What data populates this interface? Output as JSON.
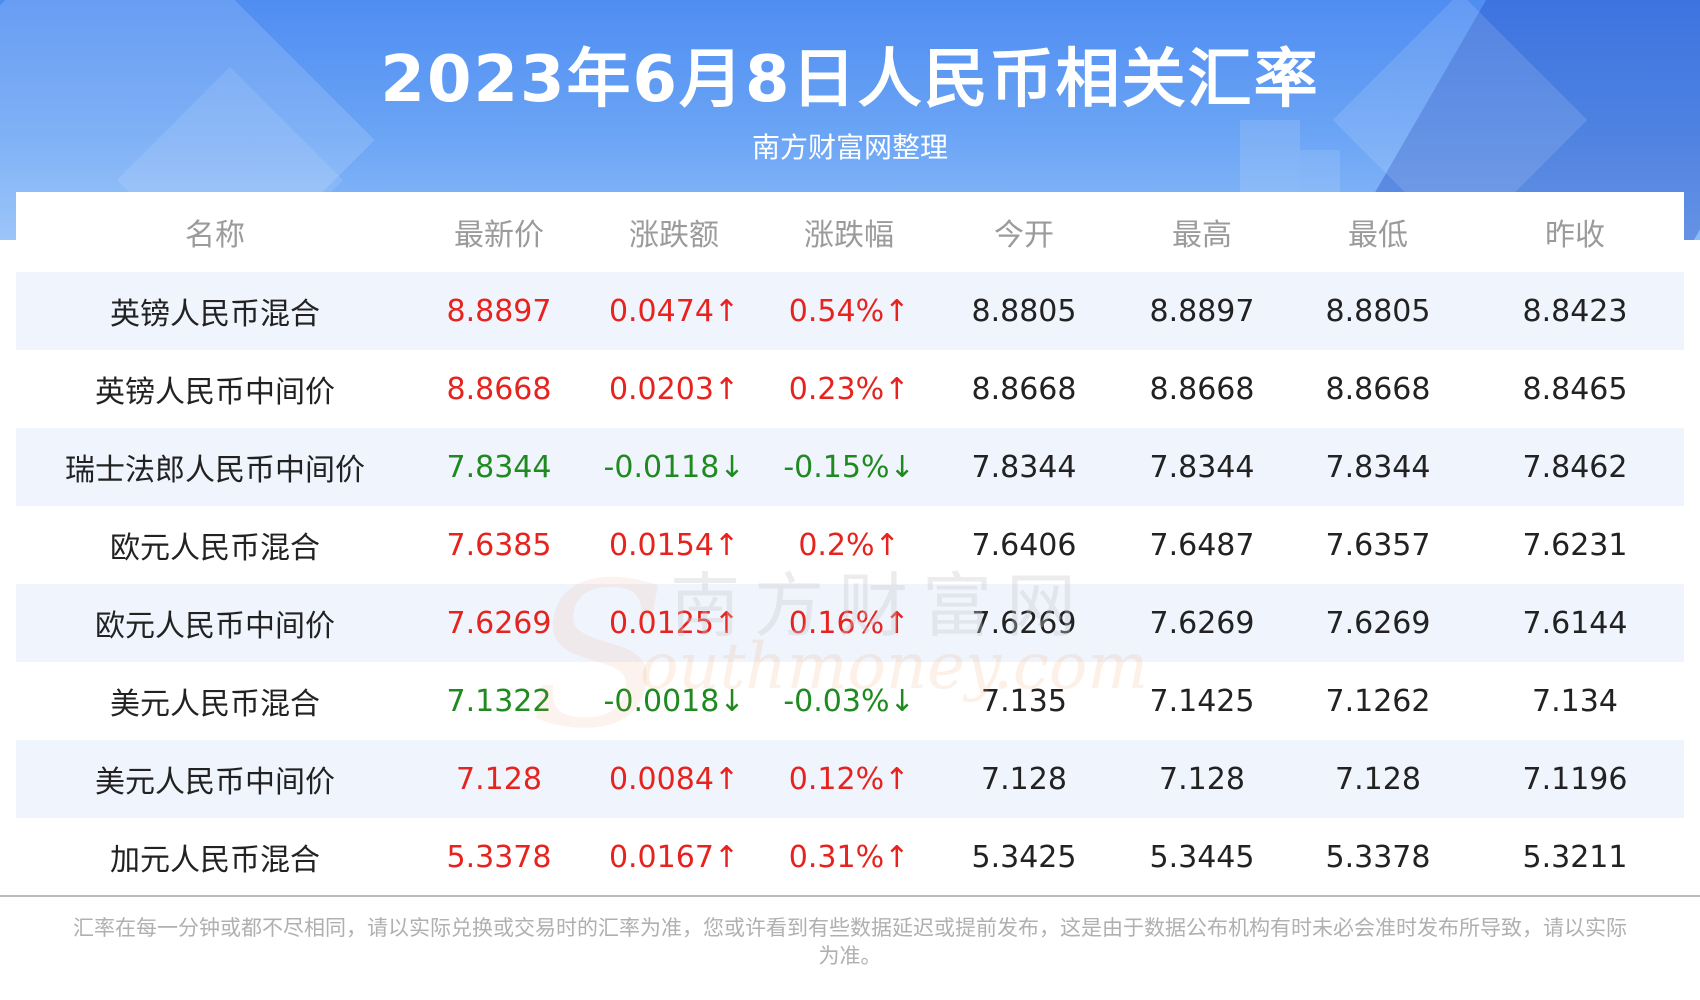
{
  "header": {
    "title": "2023年6月8日人民币相关汇率",
    "subtitle": "南方财富网整理"
  },
  "table": {
    "columns": [
      "名称",
      "最新价",
      "涨跌额",
      "涨跌幅",
      "今开",
      "最高",
      "最低",
      "昨收"
    ],
    "rows": [
      {
        "name": "英镑人民币混合",
        "latest": "8.8897",
        "change": "0.0474↑",
        "pct": "0.54%↑",
        "open": "8.8805",
        "high": "8.8897",
        "low": "8.8805",
        "prev": "8.8423",
        "trend": "up"
      },
      {
        "name": "英镑人民币中间价",
        "latest": "8.8668",
        "change": "0.0203↑",
        "pct": "0.23%↑",
        "open": "8.8668",
        "high": "8.8668",
        "low": "8.8668",
        "prev": "8.8465",
        "trend": "up"
      },
      {
        "name": "瑞士法郎人民币中间价",
        "latest": "7.8344",
        "change": "-0.0118↓",
        "pct": "-0.15%↓",
        "open": "7.8344",
        "high": "7.8344",
        "low": "7.8344",
        "prev": "7.8462",
        "trend": "down"
      },
      {
        "name": "欧元人民币混合",
        "latest": "7.6385",
        "change": "0.0154↑",
        "pct": "0.2%↑",
        "open": "7.6406",
        "high": "7.6487",
        "low": "7.6357",
        "prev": "7.6231",
        "trend": "up"
      },
      {
        "name": "欧元人民币中间价",
        "latest": "7.6269",
        "change": "0.0125↑",
        "pct": "0.16%↑",
        "open": "7.6269",
        "high": "7.6269",
        "low": "7.6269",
        "prev": "7.6144",
        "trend": "up"
      },
      {
        "name": "美元人民币混合",
        "latest": "7.1322",
        "change": "-0.0018↓",
        "pct": "-0.03%↓",
        "open": "7.135",
        "high": "7.1425",
        "low": "7.1262",
        "prev": "7.134",
        "trend": "down"
      },
      {
        "name": "美元人民币中间价",
        "latest": "7.128",
        "change": "0.0084↑",
        "pct": "0.12%↑",
        "open": "7.128",
        "high": "7.128",
        "low": "7.128",
        "prev": "7.1196",
        "trend": "up"
      },
      {
        "name": "加元人民币混合",
        "latest": "5.3378",
        "change": "0.0167↑",
        "pct": "0.31%↑",
        "open": "5.3425",
        "high": "5.3445",
        "low": "5.3378",
        "prev": "5.3211",
        "trend": "up"
      }
    ]
  },
  "watermark": {
    "cn": "南方财富网",
    "en": "outhmoney.com",
    "letter": "S"
  },
  "colors": {
    "up": "#e6231e",
    "down": "#1f8a1f",
    "header_blue": "#4f8df2"
  },
  "footnote": "汇率在每一分钟或都不尽相同，请以实际兑换或交易时的汇率为准，您或许看到有些数据延迟或提前发布，这是由于数据公布机构有时未必会准时发布所导致，请以实际为准。"
}
